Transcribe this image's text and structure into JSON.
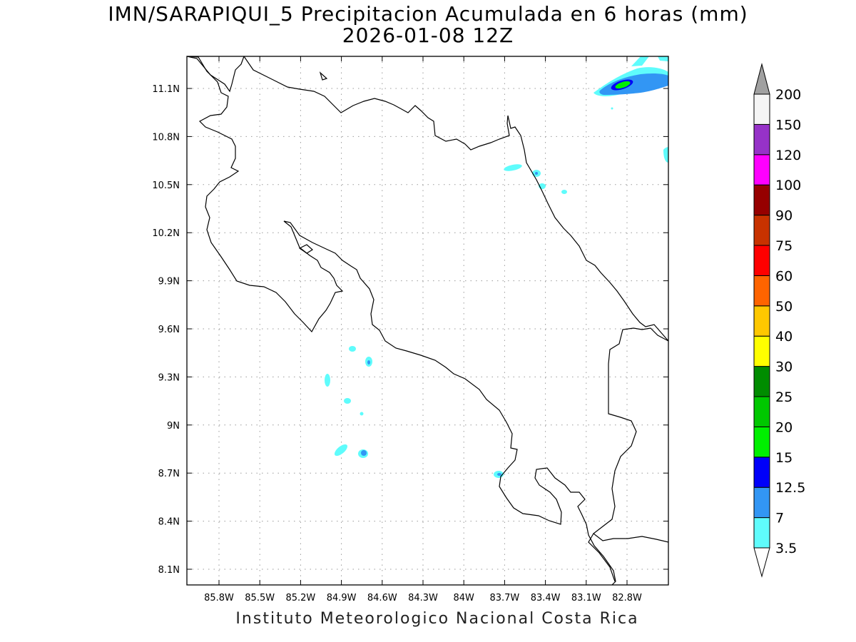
{
  "header": {
    "title": "IMN/SARAPIQUI_5 Precipitacion Acumulada en 6 horas (mm)",
    "subtitle": "2026-01-08 12Z"
  },
  "footer": {
    "credit": "Instituto Meteorologico Nacional Costa Rica"
  },
  "map": {
    "lon_ticks": [
      "85.8W",
      "85.5W",
      "85.2W",
      "84.9W",
      "84.6W",
      "84.3W",
      "84W",
      "83.7W",
      "83.4W",
      "83.1W",
      "82.8W"
    ],
    "lat_ticks": [
      "11.1N",
      "10.8N",
      "10.5N",
      "10.2N",
      "9.9N",
      "9.6N",
      "9.3N",
      "9N",
      "8.7N",
      "8.4N",
      "8.1N"
    ],
    "lon_values": [
      -85.8,
      -85.5,
      -85.2,
      -84.9,
      -84.6,
      -84.3,
      -84.0,
      -83.7,
      -83.4,
      -83.1,
      -82.8
    ],
    "lat_values": [
      11.1,
      10.8,
      10.5,
      10.2,
      9.9,
      9.6,
      9.3,
      9.0,
      8.7,
      8.4,
      8.1
    ],
    "gridlines": true
  },
  "legend": {
    "labels": [
      "3.5",
      "7",
      "12.5",
      "15",
      "20",
      "25",
      "30",
      "40",
      "50",
      "60",
      "75",
      "90",
      "100",
      "120",
      "150",
      "200"
    ],
    "colors": [
      "#5ffcfc",
      "#3296f4",
      "#0000fa",
      "#00f000",
      "#00c800",
      "#008c00",
      "#ffff00",
      "#ffc800",
      "#ff6400",
      "#ff0000",
      "#c83200",
      "#960000",
      "#ff00ff",
      "#9632c8",
      "#f5f5f5",
      "#a0a0a0"
    ]
  }
}
